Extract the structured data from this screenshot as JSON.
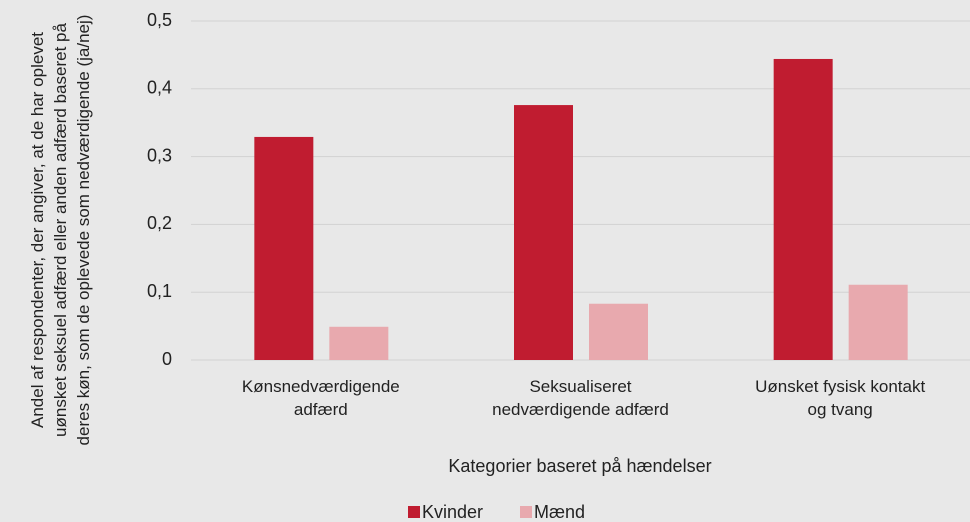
{
  "chart_data": {
    "type": "bar",
    "ylabel": "Andel af respondenter, der angiver, at de har oplevet uønsket seksuel adfærd eller anden adfærd baseret på deres køn, som de oplevede som nedværdigende (ja/nej)",
    "xlabel": "Kategorier baseret på hændelser",
    "categories": [
      "Kønsnedværdigende\nadfærd",
      "Seksualiseret\nnedværdigende adfærd",
      "Uønsket fysisk kontakt\nog tvang"
    ],
    "series": [
      {
        "name": "Kvinder",
        "color": "#c01c30",
        "values": [
          0.329,
          0.376,
          0.444
        ]
      },
      {
        "name": "Mænd",
        "color": "#e8a9ae",
        "values": [
          0.049,
          0.083,
          0.111
        ]
      }
    ],
    "ylim": [
      0,
      0.5
    ],
    "yticks": [
      0,
      {
        "value": 0.1,
        "label": "0,1"
      },
      {
        "value": 0.2,
        "label": "0,2"
      },
      {
        "value": 0.3,
        "label": "0,3"
      },
      {
        "value": 0.4,
        "label": "0,4"
      },
      {
        "value": 0.5,
        "label": "0,5"
      }
    ],
    "grid": true,
    "legend": "bottom"
  }
}
